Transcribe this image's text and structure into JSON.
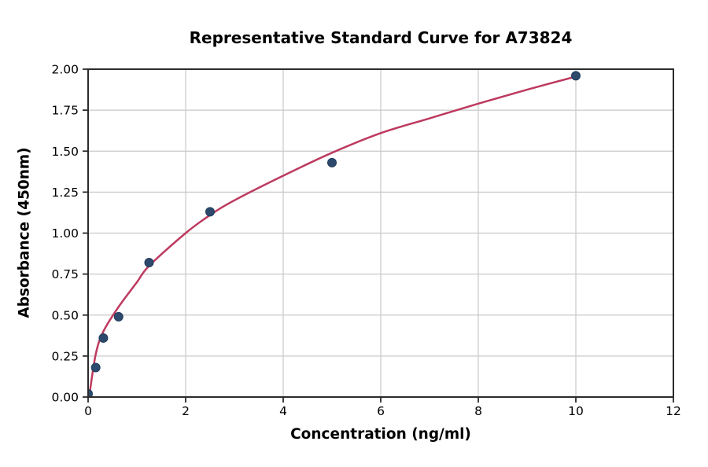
{
  "chart_data": {
    "type": "scatter",
    "title": "Representative Standard Curve for A73824",
    "xlabel": "Concentration (ng/ml)",
    "ylabel": "Absorbance (450nm)",
    "xlim": [
      0,
      12
    ],
    "ylim": [
      0,
      2.0
    ],
    "grid": true,
    "legend": "none",
    "x_ticks": {
      "values": [
        0,
        2,
        4,
        6,
        8,
        10,
        12
      ],
      "labels": [
        "0",
        "2",
        "4",
        "6",
        "8",
        "10",
        "12"
      ]
    },
    "y_ticks": {
      "values": [
        0,
        0.25,
        0.5,
        0.75,
        1.0,
        1.25,
        1.5,
        1.75,
        2.0
      ],
      "labels": [
        "0.00",
        "0.25",
        "0.50",
        "0.75",
        "1.00",
        "1.25",
        "1.50",
        "1.75",
        "2.00"
      ]
    },
    "series": [
      {
        "name": "standards",
        "kind": "scatter",
        "points": [
          [
            0,
            0.02
          ],
          [
            0.156,
            0.18
          ],
          [
            0.313,
            0.36
          ],
          [
            0.625,
            0.49
          ],
          [
            1.25,
            0.82
          ],
          [
            2.5,
            1.13
          ],
          [
            5,
            1.43
          ],
          [
            10,
            1.96
          ]
        ]
      },
      {
        "name": "fitted-curve",
        "kind": "line",
        "points": [
          [
            0.02,
            0.0
          ],
          [
            0.156,
            0.26
          ],
          [
            0.313,
            0.4
          ],
          [
            0.625,
            0.55
          ],
          [
            1.0,
            0.7
          ],
          [
            1.25,
            0.8
          ],
          [
            2.0,
            1.0
          ],
          [
            2.5,
            1.11
          ],
          [
            3.0,
            1.2
          ],
          [
            4.0,
            1.35
          ],
          [
            5.0,
            1.49
          ],
          [
            6.0,
            1.61
          ],
          [
            7.0,
            1.7
          ],
          [
            8.0,
            1.79
          ],
          [
            9.0,
            1.875
          ],
          [
            10.0,
            1.955
          ]
        ]
      }
    ],
    "colors": {
      "marker_fill": "#2d4a6d",
      "marker_edge": "#203d5c",
      "curve": "#bd3a5f",
      "grid": "#c9c9c9",
      "spine": "#2b2b2b",
      "tick_text": "#000000",
      "background": "#ffffff"
    }
  }
}
